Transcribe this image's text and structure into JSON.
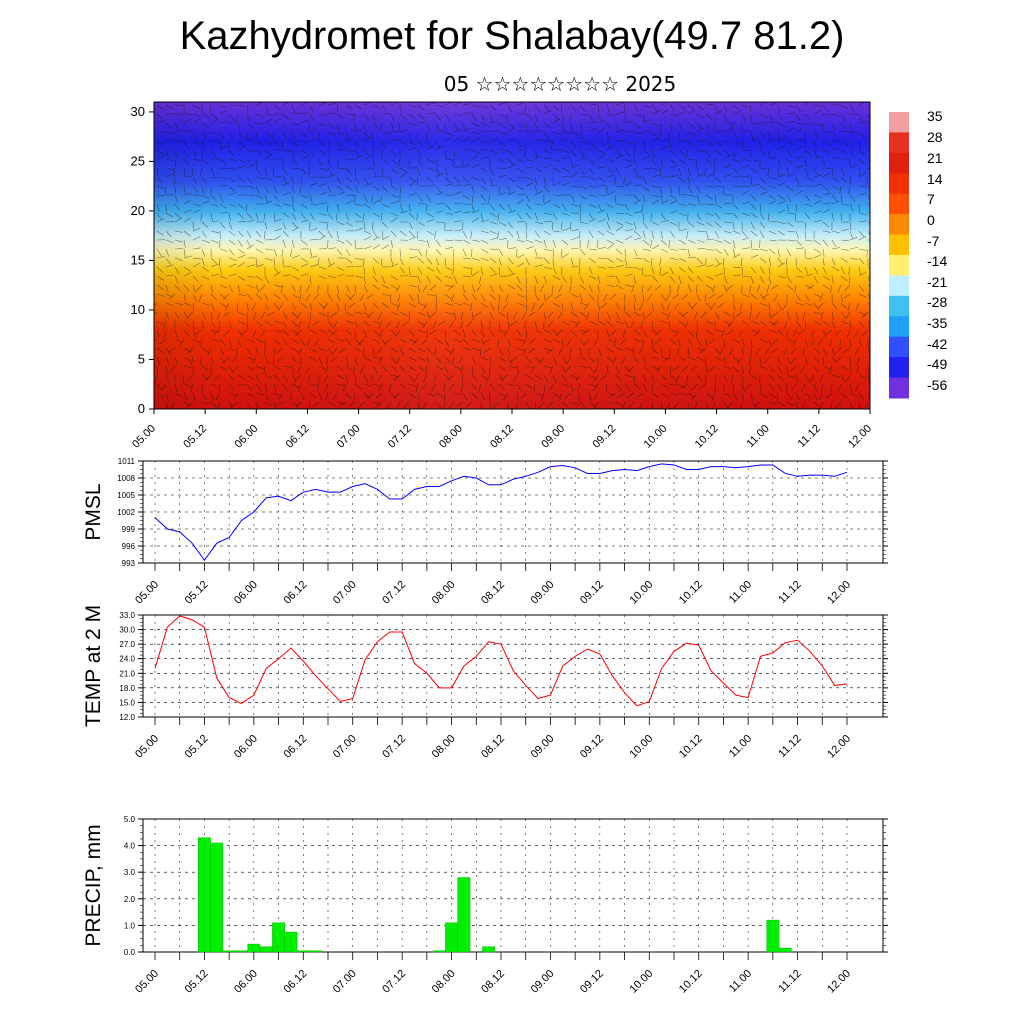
{
  "title": "Kazhydromet for Shalabay(49.7 81.2)",
  "subtitle": "05 ☆☆☆☆☆☆☆☆ 2025",
  "chart_data": [
    {
      "type": "heatmap",
      "name": "temperature-cross-section",
      "title": "",
      "ylabel": "",
      "ylim": [
        0,
        30
      ],
      "yticks": [
        "0",
        "5",
        "10",
        "15",
        "20",
        "25",
        "30"
      ],
      "xticks": [
        "05.00",
        "05.12",
        "06.00",
        "06.12",
        "07.00",
        "07.12",
        "08.00",
        "08.12",
        "09.00",
        "09.12",
        "10.00",
        "10.12",
        "11.00",
        "11.12",
        "12.00"
      ],
      "colorbar_labels": [
        "35",
        "28",
        "21",
        "14",
        "7",
        "0",
        "-7",
        "-14",
        "-21",
        "-28",
        "-35",
        "-42",
        "-49",
        "-56"
      ],
      "colorbar_colors": [
        "#f0a0a0",
        "#e83020",
        "#e02010",
        "#f03000",
        "#ff5000",
        "#ff8a00",
        "#ffc000",
        "#fff070",
        "#bfefff",
        "#40c0f0",
        "#20a0ff",
        "#3050ff",
        "#2020f0",
        "#7030e0"
      ],
      "gradient_by_height": [
        {
          "km": 0,
          "color": "#d01010"
        },
        {
          "km": 8,
          "color": "#f03000"
        },
        {
          "km": 11,
          "color": "#ff8000"
        },
        {
          "km": 14,
          "color": "#ffcc10"
        },
        {
          "km": 16,
          "color": "#fff8b0"
        },
        {
          "km": 17.5,
          "color": "#c8eef8"
        },
        {
          "km": 20,
          "color": "#40b0f0"
        },
        {
          "km": 23,
          "color": "#3050f0"
        },
        {
          "km": 27,
          "color": "#2020e8"
        },
        {
          "km": 31,
          "color": "#6a30d8"
        }
      ],
      "wind_barbs": "black overlay"
    },
    {
      "type": "line",
      "name": "pmsl",
      "ylabel": "PMSL",
      "ylim": [
        993,
        1011
      ],
      "yticks": [
        "993",
        "996",
        "999",
        "1002",
        "1005",
        "1008",
        "1011"
      ],
      "xticks": [
        "05.00",
        "05.12",
        "06.00",
        "06.12",
        "07.00",
        "07.12",
        "08.00",
        "08.12",
        "09.00",
        "09.12",
        "10.00",
        "10.12",
        "11.00",
        "11.12",
        "12.00"
      ],
      "color": "#0000ff",
      "x_hours": [
        0,
        3,
        6,
        9,
        12,
        15,
        18,
        21,
        24,
        27,
        30,
        33,
        36,
        39,
        42,
        45,
        48,
        51,
        54,
        57,
        60,
        63,
        66,
        69,
        72,
        75,
        78,
        81,
        84,
        87,
        90,
        93,
        96,
        99,
        102,
        105,
        108,
        111,
        114,
        117,
        120,
        123,
        126,
        129,
        132,
        135,
        138,
        141,
        144,
        147,
        150,
        153,
        156,
        159,
        162,
        165,
        168
      ],
      "values": [
        1001,
        999,
        998.5,
        996.5,
        993.5,
        996.5,
        997.5,
        1000.5,
        1002,
        1004.5,
        1004.8,
        1004,
        1005.5,
        1006,
        1005.5,
        1005.5,
        1006.5,
        1007,
        1006,
        1004.3,
        1004.3,
        1006,
        1006.5,
        1006.5,
        1007.5,
        1008.3,
        1008,
        1006.8,
        1006.8,
        1007.8,
        1008.3,
        1009,
        1010,
        1010.2,
        1009.8,
        1008.8,
        1008.8,
        1009.3,
        1009.5,
        1009.3,
        1010,
        1010.5,
        1010.3,
        1009.5,
        1009.5,
        1010,
        1010,
        1009.8,
        1010,
        1010.3,
        1010.3,
        1008.8,
        1008.3,
        1008.5,
        1008.5,
        1008.3,
        1009
      ]
    },
    {
      "type": "line",
      "name": "temp-2m",
      "ylabel": "TEMP at 2 M",
      "ylim": [
        12,
        33
      ],
      "yticks": [
        "12.0",
        "15.0",
        "18.0",
        "21.0",
        "24.0",
        "27.0",
        "30.0",
        "33.0"
      ],
      "xticks": [
        "05.00",
        "05.12",
        "06.00",
        "06.12",
        "07.00",
        "07.12",
        "08.00",
        "08.12",
        "09.00",
        "09.12",
        "10.00",
        "10.12",
        "11.00",
        "11.12",
        "12.00"
      ],
      "color": "#ff0000",
      "x_hours": [
        0,
        3,
        6,
        9,
        12,
        15,
        18,
        21,
        24,
        27,
        30,
        33,
        36,
        39,
        42,
        45,
        48,
        51,
        54,
        57,
        60,
        63,
        66,
        69,
        72,
        75,
        78,
        81,
        84,
        87,
        90,
        93,
        96,
        99,
        102,
        105,
        108,
        111,
        114,
        117,
        120,
        123,
        126,
        129,
        132,
        135,
        138,
        141,
        144,
        147,
        150,
        153,
        156,
        159,
        162,
        165,
        168
      ],
      "values": [
        22,
        30.5,
        32.8,
        32,
        30.5,
        20,
        16,
        14.8,
        16.5,
        22,
        24,
        26.2,
        23.5,
        20.5,
        17.8,
        15.2,
        15.8,
        23.8,
        27.5,
        29.5,
        29.5,
        23,
        21,
        18,
        18,
        22.5,
        24.5,
        27.5,
        27,
        21.5,
        18.5,
        15.8,
        16.5,
        22.5,
        24.5,
        26,
        25,
        20.5,
        17,
        14.3,
        15.2,
        22,
        25.5,
        27.2,
        26.8,
        21.5,
        19,
        16.5,
        16,
        24.5,
        25.2,
        27.3,
        27.8,
        25.5,
        22.5,
        18.5,
        18.8
      ]
    },
    {
      "type": "bar",
      "name": "precip",
      "ylabel": "PRECIP, mm",
      "ylim": [
        0,
        5
      ],
      "yticks": [
        "0.0",
        "1.0",
        "2.0",
        "3.0",
        "4.0",
        "5.0"
      ],
      "xticks": [
        "05.00",
        "05.12",
        "06.00",
        "06.12",
        "07.00",
        "07.12",
        "08.00",
        "08.12",
        "09.00",
        "09.12",
        "10.00",
        "10.12",
        "11.00",
        "11.12",
        "12.00"
      ],
      "color": "#00ee00",
      "bar_hours": [
        12,
        15,
        18,
        21,
        24,
        27,
        30,
        33,
        36,
        39,
        69,
        72,
        75,
        81,
        150,
        153
      ],
      "values": [
        4.3,
        4.1,
        0.05,
        0.05,
        0.3,
        0.2,
        1.1,
        0.75,
        0.05,
        0.05,
        0.05,
        1.1,
        2.8,
        0.2,
        1.2,
        0.15
      ]
    }
  ]
}
